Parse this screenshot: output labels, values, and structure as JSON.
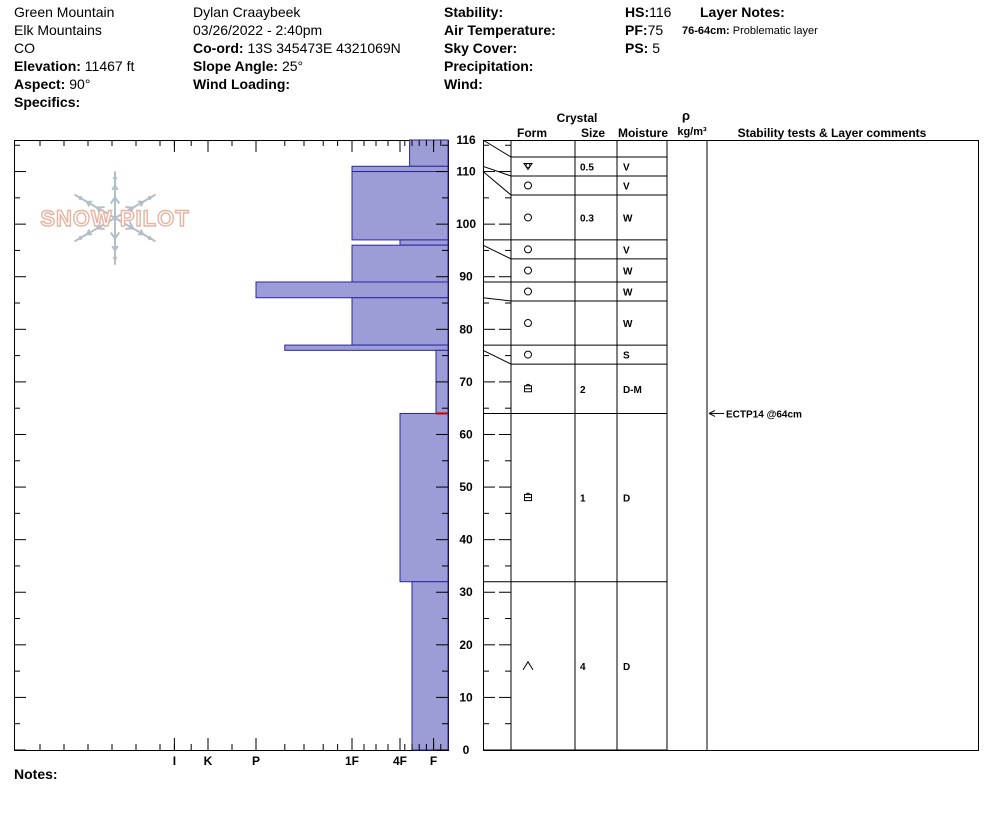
{
  "header": {
    "location": "Green Mountain",
    "range": "Elk Mountains",
    "state": "CO",
    "elevation_label": "Elevation:",
    "elevation_value": "11467 ft",
    "aspect_label": "Aspect:",
    "aspect_value": "90°",
    "specifics_label": "Specifics:",
    "observer": "Dylan Craaybeek",
    "datetime": "03/26/2022 - 2:40pm",
    "coord_label": "Co-ord:",
    "coord_value": "13S 345473E 4321069N",
    "slope_label": "Slope Angle:",
    "slope_value": "25°",
    "wind_loading_label": "Wind Loading:",
    "stability_label": "Stability:",
    "air_temp_label": "Air Temperature:",
    "sky_cover_label": "Sky Cover:",
    "precip_label": "Precipitation:",
    "wind_label": "Wind:",
    "hs_label": "HS:",
    "hs_value": "116",
    "pf_label": "PF:",
    "pf_value": "75",
    "ps_label": "PS:",
    "ps_value": "5",
    "layer_notes_label": "Layer Notes:",
    "layer_note_range": "76-64cm:",
    "layer_note_text": "Problematic layer",
    "notes_label": "Notes:"
  },
  "logo_text": "SNOW PILOT",
  "columns": {
    "crystal": "Crystal",
    "form": "Form",
    "size": "Size",
    "moisture": "Moisture",
    "rho": "ρ",
    "density": "kg/m³",
    "stability_comments": "Stability tests & Layer comments"
  },
  "colors": {
    "hardness_fill": "#9c9cd6",
    "hardness_stroke": "#2828a0",
    "test_marker": "#cc0000",
    "logo": "#e6b4a0",
    "snowflake": "#b4bec8"
  },
  "chart_data": {
    "type": "bar",
    "orientation": "horizontal-profile",
    "ylim": [
      0,
      116
    ],
    "y_ticks": [
      0,
      10,
      20,
      30,
      40,
      50,
      60,
      70,
      80,
      90,
      100,
      110,
      116
    ],
    "hardness_ticks": [
      "I",
      "K",
      "P",
      "1F",
      "4F",
      "F"
    ],
    "layers": [
      {
        "top": 116,
        "bottom": 111,
        "hardness": 0.8,
        "form": "graupel-icon",
        "size": "0.5",
        "moisture": "V"
      },
      {
        "top": 111,
        "bottom": 110,
        "hardness": 2.0,
        "form": "rounded-grain-icon",
        "size": "",
        "moisture": "V"
      },
      {
        "top": 110,
        "bottom": 97,
        "hardness": 2.0,
        "form": "rounded-grain-icon",
        "size": "0.3",
        "moisture": "W"
      },
      {
        "top": 97,
        "bottom": 96,
        "hardness": 1.0,
        "form": "rounded-grain-icon",
        "size": "",
        "moisture": "V"
      },
      {
        "top": 96,
        "bottom": 89,
        "hardness": 2.0,
        "form": "rounded-grain-icon",
        "size": "",
        "moisture": "W"
      },
      {
        "top": 89,
        "bottom": 86,
        "hardness": 4.0,
        "form": "rounded-grain-icon",
        "size": "",
        "moisture": "W"
      },
      {
        "top": 86,
        "bottom": 77,
        "hardness": 2.0,
        "form": "rounded-grain-icon",
        "size": "",
        "moisture": "W"
      },
      {
        "top": 77,
        "bottom": 76,
        "hardness": 3.4,
        "form": "rounded-grain-icon",
        "size": "",
        "moisture": "S"
      },
      {
        "top": 76,
        "bottom": 64,
        "hardness": 0.25,
        "form": "faceted-grain-icon",
        "size": "2",
        "moisture": "D-M"
      },
      {
        "top": 64,
        "bottom": 32,
        "hardness": 1.0,
        "form": "faceted-grain-icon",
        "size": "1",
        "moisture": "D"
      },
      {
        "top": 32,
        "bottom": 0,
        "hardness": 0.75,
        "form": "depth-hoar-icon",
        "size": "4",
        "moisture": "D"
      }
    ],
    "tests": [
      {
        "depth": 64,
        "label": "ECTP14 @64cm"
      }
    ]
  }
}
